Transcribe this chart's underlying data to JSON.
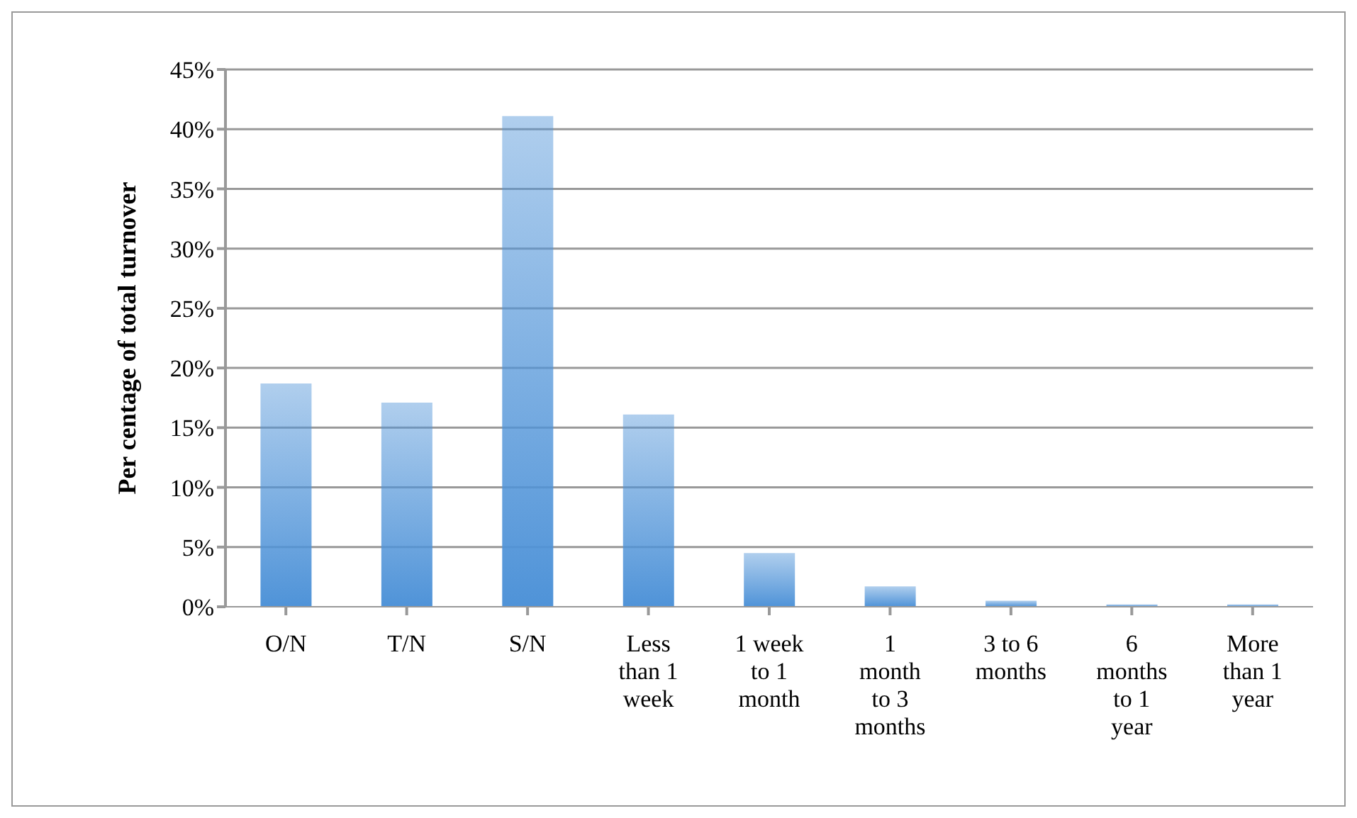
{
  "chart_data": {
    "type": "bar",
    "ylabel": "Per centage of total turnover",
    "categories": [
      "O/N",
      "T/N",
      "S/N",
      "Less than 1 week",
      "1 week to 1 month",
      "1 month to 3 months",
      "3 to 6 months",
      "6 months to 1 year",
      "More than 1 year"
    ],
    "values": [
      18.7,
      17.1,
      41.1,
      16.1,
      4.5,
      1.7,
      0.5,
      0.2,
      0.2
    ],
    "color": "#4f93d8",
    "ylim": [
      0,
      45
    ],
    "yticks": [
      {
        "value": 0,
        "label": "0%"
      },
      {
        "value": 5,
        "label": "5%"
      },
      {
        "value": 10,
        "label": "10%"
      },
      {
        "value": 15,
        "label": "15%"
      },
      {
        "value": 20,
        "label": "20%"
      },
      {
        "value": 25,
        "label": "25%"
      },
      {
        "value": 30,
        "label": "30%"
      },
      {
        "value": 35,
        "label": "35%"
      },
      {
        "value": 40,
        "label": "40%"
      },
      {
        "value": 45,
        "label": "45%"
      }
    ],
    "grid": "y",
    "legend": false
  }
}
